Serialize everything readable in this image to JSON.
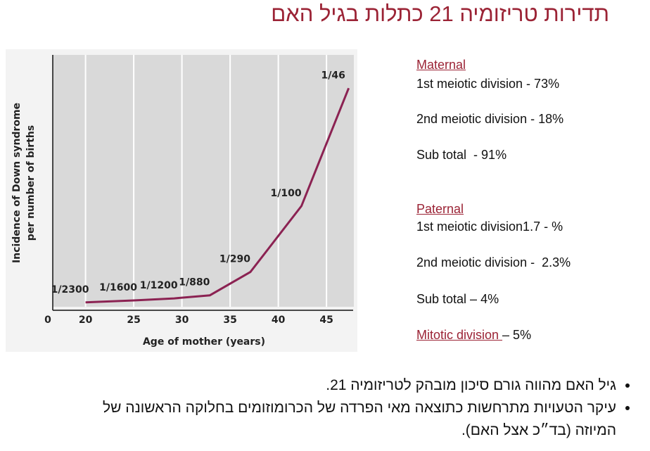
{
  "title": "תדירות טריזומיה 21 כתלות בגיל האם",
  "chart_data": {
    "type": "line",
    "xlabel": "Age of mother (years)",
    "ylabel": [
      "Incidence of Down syndrome",
      "per number of births"
    ],
    "origin_label": "0",
    "x": [
      20,
      25,
      29.2,
      32.9,
      37.1,
      42.4,
      47.3
    ],
    "series": [
      {
        "color": "#8b2252",
        "values": [
          0.000435,
          0.000625,
          0.000833,
          0.001136,
          0.00345,
          0.01,
          0.0217
        ],
        "value_labels": [
          "1/2300",
          "1/1600",
          "1/1200",
          "1/880",
          "1/290",
          "1/100",
          "1/46"
        ]
      }
    ],
    "xlim": [
      16.6,
      48.2
    ],
    "ylim": [
      0,
      0.025
    ],
    "xticks": [
      20,
      25,
      30,
      35,
      40,
      45
    ],
    "grid": true
  },
  "maternal": {
    "heading": "Maternal",
    "lines": [
      "1st meiotic division - 73%",
      "2nd meiotic division - 18%",
      "Sub total  - 91%"
    ]
  },
  "paternal": {
    "heading": "Paternal",
    "lines": [
      "1st meiotic division1.7 - %",
      "2nd meiotic division -  2.3%",
      "Sub total – 4%"
    ]
  },
  "mitotic": {
    "heading": "Mitotic division ",
    "text": "– 5%"
  },
  "bullets": [
    "גיל האם מהווה גורם סיכון מובהק לטריזומיה 21.",
    "עיקר הטעויות מתרחשות כתוצאה מאי הפרדה של הכרומוזומים בחלוקה הראשונה של המיוזה (בד״כ אצל האם)."
  ]
}
